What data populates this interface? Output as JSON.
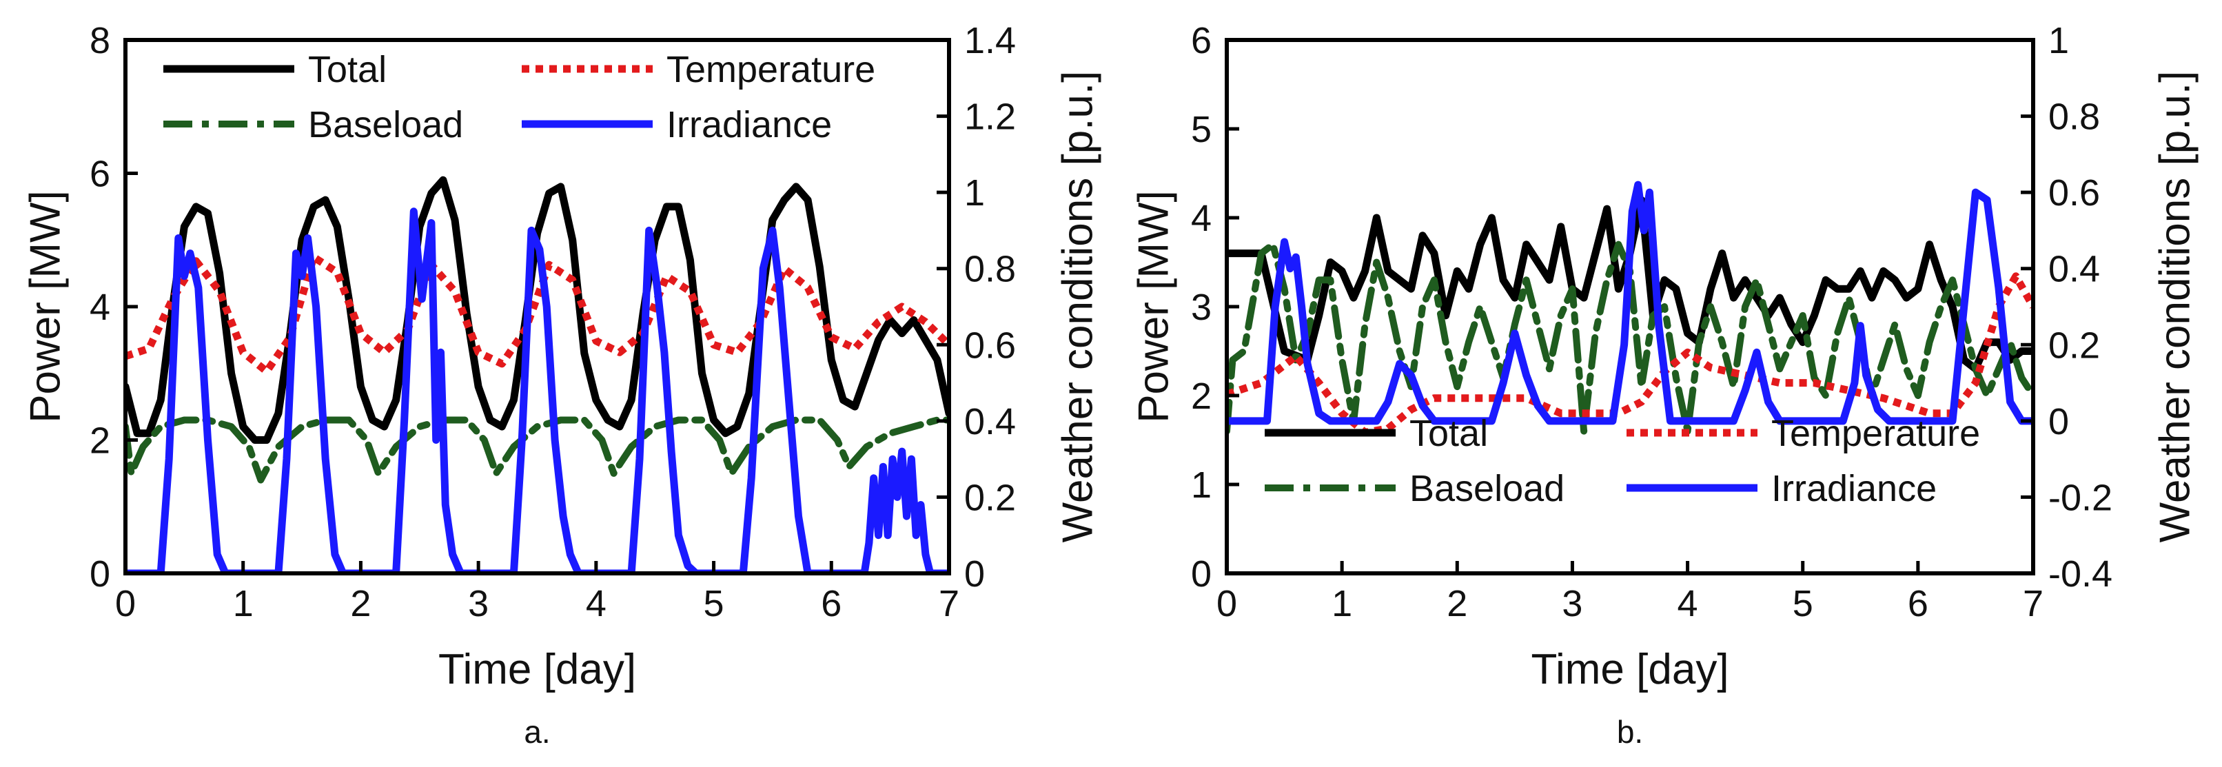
{
  "chart_data": [
    {
      "type": "line",
      "panel_label": "a.",
      "xlabel": "Time [day]",
      "ylabel": "Power [MW]",
      "y2label": "Weather conditions [p.u.]",
      "xlim": [
        0,
        7
      ],
      "ylim": [
        0,
        8
      ],
      "y2lim": [
        0,
        1.4
      ],
      "xticks": [
        "0",
        "1",
        "2",
        "3",
        "4",
        "5",
        "6",
        "7"
      ],
      "yticks": [
        "0",
        "2",
        "4",
        "6",
        "8"
      ],
      "y2ticks": [
        "0",
        "0.2",
        "0.4",
        "0.6",
        "0.8",
        "1",
        "1.2",
        "1.4"
      ],
      "grid": false,
      "legend_position": "top",
      "series": [
        {
          "name": "Total",
          "axis": "left",
          "color": "#000000",
          "style": "solid",
          "x": [
            0,
            0.1,
            0.2,
            0.3,
            0.4,
            0.5,
            0.6,
            0.7,
            0.8,
            0.9,
            1.0,
            1.1,
            1.2,
            1.3,
            1.4,
            1.5,
            1.6,
            1.7,
            1.8,
            1.9,
            2.0,
            2.1,
            2.2,
            2.3,
            2.4,
            2.5,
            2.6,
            2.7,
            2.8,
            2.9,
            3.0,
            3.1,
            3.2,
            3.3,
            3.4,
            3.5,
            3.6,
            3.7,
            3.8,
            3.9,
            4.0,
            4.1,
            4.2,
            4.3,
            4.4,
            4.5,
            4.6,
            4.7,
            4.8,
            4.9,
            5.0,
            5.1,
            5.2,
            5.3,
            5.4,
            5.5,
            5.6,
            5.7,
            5.8,
            5.9,
            6.0,
            6.1,
            6.2,
            6.3,
            6.4,
            6.5,
            6.6,
            6.7,
            6.8,
            6.9,
            7.0
          ],
          "y": [
            2.8,
            2.1,
            2.1,
            2.6,
            4.0,
            5.2,
            5.5,
            5.4,
            4.5,
            3.0,
            2.2,
            2.0,
            2.0,
            2.4,
            3.6,
            5.0,
            5.5,
            5.6,
            5.2,
            4.1,
            2.8,
            2.3,
            2.2,
            2.6,
            3.8,
            5.2,
            5.7,
            5.9,
            5.3,
            3.9,
            2.8,
            2.3,
            2.2,
            2.6,
            3.8,
            5.1,
            5.7,
            5.8,
            5.0,
            3.3,
            2.6,
            2.3,
            2.2,
            2.6,
            3.9,
            5.0,
            5.5,
            5.5,
            4.7,
            3.0,
            2.3,
            2.1,
            2.2,
            2.7,
            4.0,
            5.3,
            5.6,
            5.8,
            5.6,
            4.6,
            3.2,
            2.6,
            2.5,
            3.0,
            3.5,
            3.8,
            3.6,
            3.8,
            3.5,
            3.2,
            2.4
          ]
        },
        {
          "name": "Baseload",
          "axis": "left",
          "color": "#1f5c1f",
          "style": "dashdot",
          "x": [
            0,
            0.05,
            0.15,
            0.3,
            0.5,
            0.7,
            0.9,
            1.05,
            1.15,
            1.3,
            1.5,
            1.7,
            1.9,
            2.05,
            2.15,
            2.3,
            2.5,
            2.7,
            2.9,
            3.05,
            3.15,
            3.3,
            3.5,
            3.7,
            3.9,
            4.05,
            4.15,
            4.3,
            4.5,
            4.7,
            4.9,
            5.05,
            5.15,
            5.3,
            5.5,
            5.7,
            5.9,
            6.05,
            6.15,
            6.3,
            6.5,
            6.7,
            6.9,
            7.0
          ],
          "y": [
            2.2,
            1.5,
            1.9,
            2.2,
            2.3,
            2.3,
            2.2,
            1.9,
            1.4,
            1.9,
            2.2,
            2.3,
            2.3,
            2.0,
            1.5,
            1.9,
            2.2,
            2.3,
            2.3,
            2.0,
            1.5,
            1.9,
            2.2,
            2.3,
            2.3,
            2.0,
            1.5,
            1.9,
            2.2,
            2.3,
            2.3,
            2.0,
            1.5,
            1.9,
            2.2,
            2.3,
            2.3,
            2.0,
            1.6,
            1.9,
            2.1,
            2.2,
            2.3,
            2.3
          ]
        },
        {
          "name": "Temperature",
          "axis": "right",
          "color": "#e31a1c",
          "style": "dotted",
          "x": [
            0,
            0.2,
            0.4,
            0.6,
            0.8,
            1.0,
            1.2,
            1.4,
            1.6,
            1.8,
            2.0,
            2.2,
            2.4,
            2.6,
            2.8,
            3.0,
            3.2,
            3.4,
            3.6,
            3.8,
            4.0,
            4.2,
            4.4,
            4.6,
            4.8,
            5.0,
            5.2,
            5.4,
            5.6,
            5.8,
            6.0,
            6.2,
            6.4,
            6.6,
            6.8,
            7.0
          ],
          "y": [
            0.57,
            0.59,
            0.72,
            0.82,
            0.74,
            0.58,
            0.53,
            0.62,
            0.83,
            0.79,
            0.63,
            0.58,
            0.64,
            0.81,
            0.74,
            0.58,
            0.55,
            0.64,
            0.81,
            0.77,
            0.61,
            0.58,
            0.63,
            0.78,
            0.74,
            0.6,
            0.58,
            0.66,
            0.8,
            0.75,
            0.62,
            0.59,
            0.66,
            0.7,
            0.66,
            0.6
          ]
        },
        {
          "name": "Irradiance",
          "axis": "right",
          "color": "#1a1aff",
          "style": "solid",
          "x": [
            0,
            0.3,
            0.37,
            0.45,
            0.5,
            0.55,
            0.62,
            0.7,
            0.78,
            0.85,
            1.3,
            1.37,
            1.45,
            1.5,
            1.55,
            1.62,
            1.7,
            1.78,
            1.85,
            2.3,
            2.37,
            2.45,
            2.52,
            2.6,
            2.64,
            2.68,
            2.72,
            2.78,
            2.85,
            3.3,
            3.37,
            3.45,
            3.52,
            3.58,
            3.65,
            3.72,
            3.78,
            3.85,
            4.3,
            4.37,
            4.45,
            4.52,
            4.58,
            4.64,
            4.7,
            4.78,
            4.85,
            5.25,
            5.32,
            5.42,
            5.5,
            5.56,
            5.64,
            5.72,
            5.8,
            6.28,
            6.32,
            6.36,
            6.4,
            6.44,
            6.48,
            6.52,
            6.56,
            6.6,
            6.64,
            6.68,
            6.72,
            6.76,
            6.8,
            6.84,
            7.0
          ],
          "y": [
            0,
            0,
            0.3,
            0.88,
            0.78,
            0.84,
            0.75,
            0.35,
            0.05,
            0,
            0,
            0.3,
            0.84,
            0.78,
            0.88,
            0.7,
            0.3,
            0.05,
            0,
            0,
            0.4,
            0.95,
            0.72,
            0.92,
            0.35,
            0.58,
            0.18,
            0.05,
            0,
            0,
            0.35,
            0.9,
            0.85,
            0.7,
            0.35,
            0.15,
            0.05,
            0,
            0,
            0.3,
            0.9,
            0.75,
            0.58,
            0.32,
            0.1,
            0.02,
            0,
            0,
            0.25,
            0.8,
            0.9,
            0.75,
            0.45,
            0.15,
            0,
            0,
            0.08,
            0.25,
            0.1,
            0.28,
            0.1,
            0.3,
            0.2,
            0.32,
            0.15,
            0.3,
            0.1,
            0.18,
            0.05,
            0,
            0
          ]
        }
      ]
    },
    {
      "type": "line",
      "panel_label": "b.",
      "xlabel": "Time [day]",
      "ylabel": "Power [MW]",
      "y2label": "Weather conditions [p.u.]",
      "xlim": [
        0,
        7
      ],
      "ylim": [
        0,
        6
      ],
      "y2lim": [
        -0.4,
        1
      ],
      "xticks": [
        "0",
        "1",
        "2",
        "3",
        "4",
        "5",
        "6",
        "7"
      ],
      "yticks": [
        "0",
        "1",
        "2",
        "3",
        "4",
        "5",
        "6"
      ],
      "y2ticks": [
        "-0.4",
        "-0.2",
        "0",
        "0.2",
        "0.4",
        "0.6",
        "0.8",
        "1"
      ],
      "grid": false,
      "legend_position": "bottom",
      "series": [
        {
          "name": "Total",
          "axis": "left",
          "color": "#000000",
          "style": "solid",
          "x": [
            0,
            0.3,
            0.5,
            0.7,
            0.8,
            0.9,
            1.0,
            1.1,
            1.2,
            1.3,
            1.4,
            1.5,
            1.6,
            1.7,
            1.8,
            1.9,
            2.0,
            2.1,
            2.2,
            2.3,
            2.4,
            2.5,
            2.6,
            2.7,
            2.8,
            2.9,
            3.0,
            3.1,
            3.2,
            3.3,
            3.4,
            3.5,
            3.6,
            3.7,
            3.8,
            3.9,
            4.0,
            4.1,
            4.2,
            4.3,
            4.4,
            4.5,
            4.6,
            4.7,
            4.8,
            4.9,
            5.0,
            5.1,
            5.2,
            5.3,
            5.4,
            5.5,
            5.6,
            5.7,
            5.8,
            5.9,
            6.0,
            6.1,
            6.2,
            6.3,
            6.4,
            6.5,
            6.6,
            6.7,
            6.8,
            6.9,
            7.0
          ],
          "y": [
            3.6,
            3.6,
            2.5,
            2.4,
            2.9,
            3.5,
            3.4,
            3.1,
            3.4,
            4.0,
            3.4,
            3.3,
            3.2,
            3.8,
            3.6,
            2.9,
            3.4,
            3.2,
            3.7,
            4.0,
            3.3,
            3.1,
            3.7,
            3.5,
            3.3,
            3.9,
            3.2,
            3.1,
            3.6,
            4.1,
            3.2,
            3.6,
            4.2,
            2.9,
            3.3,
            3.2,
            2.7,
            2.6,
            3.2,
            3.6,
            3.1,
            3.3,
            3.1,
            2.9,
            3.1,
            2.8,
            2.6,
            2.9,
            3.3,
            3.2,
            3.2,
            3.4,
            3.1,
            3.4,
            3.3,
            3.1,
            3.2,
            3.7,
            3.3,
            3.0,
            2.4,
            2.3,
            2.6,
            2.6,
            2.4,
            2.5,
            2.5
          ]
        },
        {
          "name": "Baseload",
          "axis": "left",
          "color": "#1f5c1f",
          "style": "dashdot",
          "x": [
            0,
            0.05,
            0.15,
            0.3,
            0.4,
            0.5,
            0.6,
            0.7,
            0.8,
            0.9,
            1.0,
            1.1,
            1.2,
            1.3,
            1.4,
            1.5,
            1.6,
            1.7,
            1.8,
            1.9,
            2.0,
            2.1,
            2.2,
            2.3,
            2.4,
            2.5,
            2.6,
            2.7,
            2.8,
            2.9,
            3.0,
            3.1,
            3.2,
            3.3,
            3.4,
            3.5,
            3.6,
            3.7,
            3.8,
            3.9,
            4.0,
            4.1,
            4.2,
            4.3,
            4.4,
            4.5,
            4.6,
            4.7,
            4.8,
            4.9,
            5.0,
            5.1,
            5.2,
            5.3,
            5.4,
            5.5,
            5.6,
            5.7,
            5.8,
            5.9,
            6.0,
            6.1,
            6.2,
            6.3,
            6.4,
            6.5,
            6.6,
            6.7,
            6.8,
            6.9,
            7.0
          ],
          "y": [
            1.6,
            2.4,
            2.5,
            3.6,
            3.7,
            3.2,
            2.4,
            2.7,
            3.3,
            3.3,
            2.4,
            1.7,
            2.8,
            3.5,
            3.1,
            2.5,
            2.1,
            3.0,
            3.3,
            2.6,
            2.1,
            2.6,
            3.0,
            2.6,
            2.2,
            2.8,
            3.3,
            2.8,
            2.3,
            2.9,
            3.2,
            1.6,
            2.7,
            3.3,
            3.7,
            3.4,
            2.1,
            2.9,
            3.0,
            2.2,
            1.6,
            2.6,
            3.0,
            2.6,
            2.1,
            3.0,
            3.3,
            2.8,
            2.3,
            2.6,
            2.9,
            2.2,
            2.0,
            2.7,
            3.1,
            2.6,
            2.0,
            2.4,
            2.8,
            2.3,
            2.0,
            2.6,
            3.0,
            3.3,
            2.8,
            2.3,
            2.0,
            2.3,
            2.6,
            2.2,
            2.0
          ]
        },
        {
          "name": "Temperature",
          "axis": "right",
          "color": "#e31a1c",
          "style": "dotted",
          "x": [
            0,
            0.3,
            0.6,
            0.8,
            1.0,
            1.2,
            1.4,
            1.6,
            1.8,
            2.0,
            2.3,
            2.6,
            2.9,
            3.2,
            3.4,
            3.6,
            3.8,
            4.0,
            4.2,
            4.5,
            4.8,
            5.1,
            5.4,
            5.7,
            5.9,
            6.1,
            6.3,
            6.5,
            6.7,
            6.85,
            7.0
          ],
          "y": [
            0.07,
            0.1,
            0.17,
            0.1,
            0.02,
            -0.03,
            -0.02,
            0.03,
            0.06,
            0.06,
            0.06,
            0.06,
            0.02,
            0.02,
            0.02,
            0.05,
            0.13,
            0.18,
            0.14,
            0.12,
            0.1,
            0.1,
            0.08,
            0.06,
            0.04,
            0.02,
            0.02,
            0.1,
            0.3,
            0.38,
            0.3
          ]
        },
        {
          "name": "Irradiance",
          "axis": "right",
          "color": "#1a1aff",
          "style": "solid",
          "x": [
            0,
            0.35,
            0.42,
            0.5,
            0.55,
            0.6,
            0.65,
            0.7,
            0.8,
            0.9,
            1.3,
            1.4,
            1.5,
            1.6,
            1.7,
            1.8,
            2.3,
            2.4,
            2.5,
            2.6,
            2.7,
            2.8,
            3.35,
            3.45,
            3.52,
            3.57,
            3.62,
            3.67,
            3.75,
            3.85,
            4.4,
            4.5,
            4.6,
            4.7,
            4.8,
            5.35,
            5.45,
            5.5,
            5.55,
            5.65,
            5.75,
            6.3,
            6.4,
            6.5,
            6.6,
            6.7,
            6.8,
            6.9,
            7.0
          ],
          "y": [
            0,
            0,
            0.3,
            0.47,
            0.4,
            0.43,
            0.3,
            0.15,
            0.02,
            0,
            0,
            0.05,
            0.15,
            0.12,
            0.04,
            0,
            0,
            0.1,
            0.23,
            0.12,
            0.04,
            0,
            0,
            0.2,
            0.55,
            0.62,
            0.5,
            0.6,
            0.25,
            0,
            0,
            0.08,
            0.18,
            0.05,
            0,
            0,
            0.1,
            0.25,
            0.12,
            0.03,
            0,
            0,
            0.3,
            0.6,
            0.58,
            0.35,
            0.05,
            0,
            0
          ]
        }
      ]
    }
  ]
}
